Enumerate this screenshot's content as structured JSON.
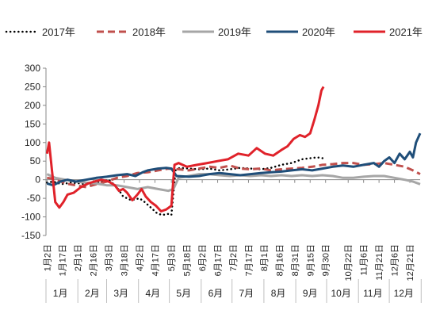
{
  "chart_data": {
    "type": "line",
    "title": "",
    "xlabel": "",
    "ylabel": "",
    "ylim": [
      -150,
      300
    ],
    "yticks": [
      -150,
      -100,
      -50,
      0,
      50,
      100,
      150,
      200,
      250,
      300
    ],
    "grid": false,
    "legend_position": "top",
    "x_day_range": [
      1,
      365
    ],
    "date_ticks": [
      {
        "label": "1月2日",
        "day": 2
      },
      {
        "label": "1月17日",
        "day": 17
      },
      {
        "label": "2月1日",
        "day": 32
      },
      {
        "label": "2月16日",
        "day": 47
      },
      {
        "label": "3月3日",
        "day": 62
      },
      {
        "label": "3月18日",
        "day": 77
      },
      {
        "label": "4月2日",
        "day": 92
      },
      {
        "label": "4月17日",
        "day": 107
      },
      {
        "label": "5月3日",
        "day": 123
      },
      {
        "label": "5月18日",
        "day": 138
      },
      {
        "label": "6月2日",
        "day": 153
      },
      {
        "label": "6月17日",
        "day": 168
      },
      {
        "label": "7月2日",
        "day": 183
      },
      {
        "label": "7月17日",
        "day": 198
      },
      {
        "label": "8月1日",
        "day": 213
      },
      {
        "label": "8月16日",
        "day": 228
      },
      {
        "label": "8月31日",
        "day": 243
      },
      {
        "label": "9月15日",
        "day": 258
      },
      {
        "label": "9月30日",
        "day": 273
      },
      {
        "label": "10月22日",
        "day": 295
      },
      {
        "label": "11月6日",
        "day": 310
      },
      {
        "label": "11月21日",
        "day": 325
      },
      {
        "label": "12月6日",
        "day": 340
      },
      {
        "label": "12月21日",
        "day": 355
      }
    ],
    "month_labels": [
      {
        "label": "1月",
        "day": 15
      },
      {
        "label": "2月",
        "day": 46
      },
      {
        "label": "3月",
        "day": 74
      },
      {
        "label": "4月",
        "day": 105
      },
      {
        "label": "5月",
        "day": 135
      },
      {
        "label": "6月",
        "day": 166
      },
      {
        "label": "7月",
        "day": 196
      },
      {
        "label": "8月",
        "day": 227
      },
      {
        "label": "9月",
        "day": 258
      },
      {
        "label": "10月",
        "day": 288
      },
      {
        "label": "11月",
        "day": 319
      },
      {
        "label": "12月",
        "day": 349
      }
    ],
    "series": [
      {
        "name": "2017年",
        "color": "#000000",
        "style": "dotted",
        "points": [
          {
            "day": 2,
            "y": -8
          },
          {
            "day": 8,
            "y": -5
          },
          {
            "day": 16,
            "y": -12
          },
          {
            "day": 25,
            "y": -8
          },
          {
            "day": 35,
            "y": -10
          },
          {
            "day": 45,
            "y": -15
          },
          {
            "day": 55,
            "y": -5
          },
          {
            "day": 62,
            "y": 0
          },
          {
            "day": 70,
            "y": -20
          },
          {
            "day": 76,
            "y": -45
          },
          {
            "day": 84,
            "y": -55
          },
          {
            "day": 92,
            "y": -50
          },
          {
            "day": 97,
            "y": -60
          },
          {
            "day": 103,
            "y": -75
          },
          {
            "day": 109,
            "y": -90
          },
          {
            "day": 114,
            "y": -95
          },
          {
            "day": 120,
            "y": -92
          },
          {
            "day": 123,
            "y": -95
          },
          {
            "day": 127,
            "y": 25
          },
          {
            "day": 131,
            "y": 32
          },
          {
            "day": 140,
            "y": 30
          },
          {
            "day": 150,
            "y": 28
          },
          {
            "day": 160,
            "y": 30
          },
          {
            "day": 170,
            "y": 25
          },
          {
            "day": 180,
            "y": 28
          },
          {
            "day": 190,
            "y": 32
          },
          {
            "day": 200,
            "y": 30
          },
          {
            "day": 210,
            "y": 28
          },
          {
            "day": 220,
            "y": 32
          },
          {
            "day": 230,
            "y": 40
          },
          {
            "day": 240,
            "y": 45
          },
          {
            "day": 250,
            "y": 55
          },
          {
            "day": 258,
            "y": 58
          },
          {
            "day": 265,
            "y": 60
          },
          {
            "day": 270,
            "y": 58
          }
        ]
      },
      {
        "name": "2018年",
        "color": "#c0504d",
        "style": "dashed",
        "points": [
          {
            "day": 2,
            "y": 5
          },
          {
            "day": 10,
            "y": 2
          },
          {
            "day": 20,
            "y": -10
          },
          {
            "day": 30,
            "y": -15
          },
          {
            "day": 40,
            "y": -20
          },
          {
            "day": 50,
            "y": -12
          },
          {
            "day": 60,
            "y": -5
          },
          {
            "day": 70,
            "y": 5
          },
          {
            "day": 80,
            "y": 10
          },
          {
            "day": 90,
            "y": 18
          },
          {
            "day": 100,
            "y": 20
          },
          {
            "day": 110,
            "y": 25
          },
          {
            "day": 120,
            "y": 30
          },
          {
            "day": 130,
            "y": 28
          },
          {
            "day": 140,
            "y": 25
          },
          {
            "day": 150,
            "y": 30
          },
          {
            "day": 160,
            "y": 35
          },
          {
            "day": 170,
            "y": 32
          },
          {
            "day": 180,
            "y": 38
          },
          {
            "day": 190,
            "y": 30
          },
          {
            "day": 200,
            "y": 28
          },
          {
            "day": 210,
            "y": 30
          },
          {
            "day": 220,
            "y": 25
          },
          {
            "day": 230,
            "y": 28
          },
          {
            "day": 240,
            "y": 30
          },
          {
            "day": 250,
            "y": 32
          },
          {
            "day": 260,
            "y": 35
          },
          {
            "day": 270,
            "y": 40
          },
          {
            "day": 280,
            "y": 42
          },
          {
            "day": 290,
            "y": 45
          },
          {
            "day": 300,
            "y": 45
          },
          {
            "day": 310,
            "y": 40
          },
          {
            "day": 320,
            "y": 42
          },
          {
            "day": 330,
            "y": 45
          },
          {
            "day": 340,
            "y": 40
          },
          {
            "day": 350,
            "y": 35
          },
          {
            "day": 358,
            "y": 25
          },
          {
            "day": 365,
            "y": 15
          }
        ]
      },
      {
        "name": "2019年",
        "color": "#a6a6a6",
        "style": "solid",
        "points": [
          {
            "day": 2,
            "y": 15
          },
          {
            "day": 10,
            "y": 5
          },
          {
            "day": 20,
            "y": 0
          },
          {
            "day": 30,
            "y": -5
          },
          {
            "day": 40,
            "y": -8
          },
          {
            "day": 50,
            "y": -10
          },
          {
            "day": 60,
            "y": -15
          },
          {
            "day": 70,
            "y": -15
          },
          {
            "day": 80,
            "y": -20
          },
          {
            "day": 90,
            "y": -25
          },
          {
            "day": 100,
            "y": -20
          },
          {
            "day": 110,
            "y": -25
          },
          {
            "day": 120,
            "y": -30
          },
          {
            "day": 125,
            "y": -25
          },
          {
            "day": 130,
            "y": 5
          },
          {
            "day": 140,
            "y": 10
          },
          {
            "day": 150,
            "y": 15
          },
          {
            "day": 160,
            "y": 15
          },
          {
            "day": 170,
            "y": 12
          },
          {
            "day": 180,
            "y": 10
          },
          {
            "day": 190,
            "y": 12
          },
          {
            "day": 200,
            "y": 10
          },
          {
            "day": 210,
            "y": 12
          },
          {
            "day": 220,
            "y": 10
          },
          {
            "day": 230,
            "y": 12
          },
          {
            "day": 240,
            "y": 10
          },
          {
            "day": 250,
            "y": 12
          },
          {
            "day": 260,
            "y": 10
          },
          {
            "day": 270,
            "y": 12
          },
          {
            "day": 280,
            "y": 10
          },
          {
            "day": 290,
            "y": 5
          },
          {
            "day": 300,
            "y": 5
          },
          {
            "day": 310,
            "y": 8
          },
          {
            "day": 320,
            "y": 10
          },
          {
            "day": 330,
            "y": 10
          },
          {
            "day": 340,
            "y": 5
          },
          {
            "day": 350,
            "y": 0
          },
          {
            "day": 358,
            "y": -5
          },
          {
            "day": 365,
            "y": -12
          }
        ]
      },
      {
        "name": "2020年",
        "color": "#1f4e79",
        "style": "solid",
        "points": [
          {
            "day": 2,
            "y": -10
          },
          {
            "day": 8,
            "y": -15
          },
          {
            "day": 15,
            "y": -5
          },
          {
            "day": 22,
            "y": 0
          },
          {
            "day": 30,
            "y": -5
          },
          {
            "day": 40,
            "y": 0
          },
          {
            "day": 50,
            "y": 5
          },
          {
            "day": 60,
            "y": 8
          },
          {
            "day": 70,
            "y": 12
          },
          {
            "day": 80,
            "y": 15
          },
          {
            "day": 88,
            "y": 10
          },
          {
            "day": 95,
            "y": 20
          },
          {
            "day": 100,
            "y": 25
          },
          {
            "day": 110,
            "y": 30
          },
          {
            "day": 118,
            "y": 32
          },
          {
            "day": 123,
            "y": 30
          },
          {
            "day": 128,
            "y": 10
          },
          {
            "day": 140,
            "y": 8
          },
          {
            "day": 150,
            "y": 10
          },
          {
            "day": 160,
            "y": 15
          },
          {
            "day": 170,
            "y": 18
          },
          {
            "day": 180,
            "y": 15
          },
          {
            "day": 190,
            "y": 12
          },
          {
            "day": 200,
            "y": 15
          },
          {
            "day": 210,
            "y": 18
          },
          {
            "day": 220,
            "y": 20
          },
          {
            "day": 230,
            "y": 22
          },
          {
            "day": 240,
            "y": 25
          },
          {
            "day": 250,
            "y": 28
          },
          {
            "day": 260,
            "y": 25
          },
          {
            "day": 270,
            "y": 30
          },
          {
            "day": 280,
            "y": 35
          },
          {
            "day": 290,
            "y": 38
          },
          {
            "day": 300,
            "y": 35
          },
          {
            "day": 310,
            "y": 40
          },
          {
            "day": 320,
            "y": 45
          },
          {
            "day": 325,
            "y": 35
          },
          {
            "day": 330,
            "y": 50
          },
          {
            "day": 335,
            "y": 60
          },
          {
            "day": 340,
            "y": 45
          },
          {
            "day": 345,
            "y": 70
          },
          {
            "day": 350,
            "y": 55
          },
          {
            "day": 355,
            "y": 75
          },
          {
            "day": 358,
            "y": 60
          },
          {
            "day": 361,
            "y": 100
          },
          {
            "day": 365,
            "y": 125
          }
        ]
      },
      {
        "name": "2021年",
        "color": "#e0222a",
        "style": "solid",
        "points": [
          {
            "day": 2,
            "y": 70
          },
          {
            "day": 4,
            "y": 100
          },
          {
            "day": 7,
            "y": 20
          },
          {
            "day": 10,
            "y": -60
          },
          {
            "day": 14,
            "y": -75
          },
          {
            "day": 18,
            "y": -60
          },
          {
            "day": 22,
            "y": -40
          },
          {
            "day": 28,
            "y": -35
          },
          {
            "day": 35,
            "y": -20
          },
          {
            "day": 42,
            "y": -10
          },
          {
            "day": 48,
            "y": -5
          },
          {
            "day": 55,
            "y": 0
          },
          {
            "day": 62,
            "y": -5
          },
          {
            "day": 68,
            "y": -15
          },
          {
            "day": 72,
            "y": -30
          },
          {
            "day": 76,
            "y": -25
          },
          {
            "day": 80,
            "y": -35
          },
          {
            "day": 85,
            "y": -55
          },
          {
            "day": 90,
            "y": -40
          },
          {
            "day": 94,
            "y": -25
          },
          {
            "day": 98,
            "y": -45
          },
          {
            "day": 103,
            "y": -60
          },
          {
            "day": 108,
            "y": -70
          },
          {
            "day": 113,
            "y": -85
          },
          {
            "day": 118,
            "y": -80
          },
          {
            "day": 123,
            "y": -70
          },
          {
            "day": 126,
            "y": 40
          },
          {
            "day": 130,
            "y": 45
          },
          {
            "day": 138,
            "y": 35
          },
          {
            "day": 148,
            "y": 40
          },
          {
            "day": 158,
            "y": 45
          },
          {
            "day": 168,
            "y": 50
          },
          {
            "day": 178,
            "y": 55
          },
          {
            "day": 188,
            "y": 70
          },
          {
            "day": 198,
            "y": 65
          },
          {
            "day": 206,
            "y": 85
          },
          {
            "day": 214,
            "y": 70
          },
          {
            "day": 222,
            "y": 65
          },
          {
            "day": 230,
            "y": 80
          },
          {
            "day": 236,
            "y": 90
          },
          {
            "day": 242,
            "y": 110
          },
          {
            "day": 248,
            "y": 120
          },
          {
            "day": 253,
            "y": 115
          },
          {
            "day": 258,
            "y": 125
          },
          {
            "day": 262,
            "y": 160
          },
          {
            "day": 266,
            "y": 200
          },
          {
            "day": 269,
            "y": 240
          },
          {
            "day": 271,
            "y": 250
          }
        ]
      }
    ]
  }
}
